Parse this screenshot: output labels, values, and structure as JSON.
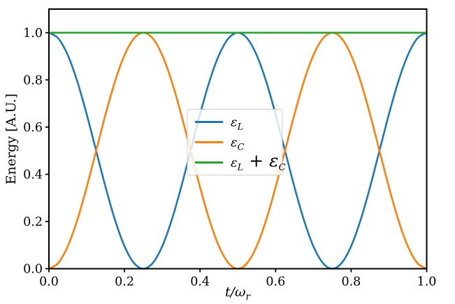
{
  "figure": {
    "background": "#ffffff",
    "frame_color": "#000000",
    "text_color": "#000000"
  },
  "chart_data": {
    "type": "line",
    "title": "",
    "xlabel": "t/ω_r",
    "ylabel": "Energy [A.U.]",
    "xlim": [
      0.0,
      1.0
    ],
    "ylim": [
      0.0,
      1.1
    ],
    "xticks": [
      "0.0",
      "0.2",
      "0.4",
      "0.6",
      "0.8",
      "1.0"
    ],
    "yticks": [
      "0.0",
      "0.2",
      "0.4",
      "0.6",
      "0.8",
      "1.0"
    ],
    "grid": false,
    "legend": {
      "location": "center",
      "background": "#ffffff",
      "background_opacity": 0.8,
      "border_color": "#cccccc"
    },
    "x": [
      0,
      0.025,
      0.05,
      0.075,
      0.1,
      0.125,
      0.15,
      0.175,
      0.2,
      0.225,
      0.25,
      0.275,
      0.3,
      0.325,
      0.35,
      0.375,
      0.4,
      0.425,
      0.45,
      0.475,
      0.5,
      0.525,
      0.55,
      0.575,
      0.6,
      0.625,
      0.65,
      0.675,
      0.7,
      0.725,
      0.75,
      0.775,
      0.8,
      0.825,
      0.85,
      0.875,
      0.9,
      0.925,
      0.95,
      0.975,
      1
    ],
    "series": [
      {
        "name": "ε_L",
        "slug": "epsilon-l",
        "color": "#1f77b4",
        "values": [
          1,
          0.9755,
          0.9045,
          0.7939,
          0.6545,
          0.5,
          0.3455,
          0.2061,
          0.0955,
          0.0245,
          0,
          0.0245,
          0.0955,
          0.2061,
          0.3455,
          0.5,
          0.6545,
          0.7939,
          0.9045,
          0.9755,
          1,
          0.9755,
          0.9045,
          0.7939,
          0.6545,
          0.5,
          0.3455,
          0.2061,
          0.0955,
          0.0245,
          0,
          0.0245,
          0.0955,
          0.2061,
          0.3455,
          0.5,
          0.6545,
          0.7939,
          0.9045,
          0.9755,
          1
        ]
      },
      {
        "name": "ε_C",
        "slug": "epsilon-c",
        "color": "#ff7f0e",
        "values": [
          0,
          0.0245,
          0.0955,
          0.2061,
          0.3455,
          0.5,
          0.6545,
          0.7939,
          0.9045,
          0.9755,
          1,
          0.9755,
          0.9045,
          0.7939,
          0.6545,
          0.5,
          0.3455,
          0.2061,
          0.0955,
          0.0245,
          0,
          0.0245,
          0.0955,
          0.2061,
          0.3455,
          0.5,
          0.6545,
          0.7939,
          0.9045,
          0.9755,
          1,
          0.9755,
          0.9045,
          0.7939,
          0.6545,
          0.5,
          0.3455,
          0.2061,
          0.0955,
          0.0245,
          0
        ]
      },
      {
        "name": "ε_L + ε_C",
        "slug": "epsilon-l-plus-epsilon-c",
        "color": "#2ca02c",
        "values": [
          1,
          1,
          1,
          1,
          1,
          1,
          1,
          1,
          1,
          1,
          1,
          1,
          1,
          1,
          1,
          1,
          1,
          1,
          1,
          1,
          1,
          1,
          1,
          1,
          1,
          1,
          1,
          1,
          1,
          1,
          1,
          1,
          1,
          1,
          1,
          1,
          1,
          1,
          1,
          1,
          1
        ]
      }
    ]
  }
}
